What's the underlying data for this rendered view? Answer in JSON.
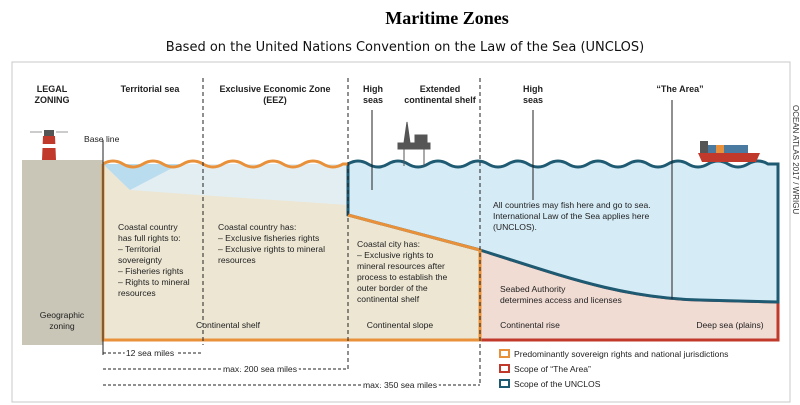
{
  "title": "Maritime Zones",
  "subtitle": "Based on the United Nations Convention on the Law of the Sea (UNCLOS)",
  "legal_zoning": {
    "label": [
      "LEGAL",
      "ZONING"
    ],
    "zones": [
      [
        "Territorial sea"
      ],
      [
        "Exclusive Economic Zone",
        "(EEZ)"
      ],
      [
        "High",
        "seas"
      ],
      [
        "Extended",
        "continental shelf"
      ],
      [
        "High",
        "seas"
      ],
      [
        "“The Area”"
      ]
    ]
  },
  "base_line": "Base line",
  "descriptions": [
    [
      "Coastal country",
      "has full rights to:",
      "– Territorial",
      "   sovereignty",
      "– Fisheries rights",
      "– Rights to mineral",
      "   resources"
    ],
    [
      "Coastal country has:",
      "– Exclusive fisheries rights",
      "– Exclusive rights to mineral",
      "   resources"
    ],
    [
      "Coastal city has:",
      "– Exclusive rights to",
      "   mineral resources after",
      "   process to establish the",
      "   outer border of the",
      "   continental shelf"
    ],
    [
      "All countries may fish here and go to sea.",
      "International Law of the Sea applies here",
      "(UNCLOS)."
    ],
    [
      "Seabed Authority",
      "determines access and licenses"
    ]
  ],
  "geographic_zoning": {
    "label": [
      "Geographic",
      "zoning"
    ],
    "zones": [
      "Continental shelf",
      "Continental slope",
      "Continental rise",
      "Deep sea (plains)"
    ]
  },
  "distances": [
    "12 sea miles",
    "max. 200 sea miles",
    "max. 350 sea miles"
  ],
  "legend": [
    "Predominantly sovereign rights and national jurisdictions",
    "Scope of “The Area”",
    "Scope of the UNCLOS"
  ],
  "credit": "OCEAN ATLAS 2017 / WRIGU"
}
